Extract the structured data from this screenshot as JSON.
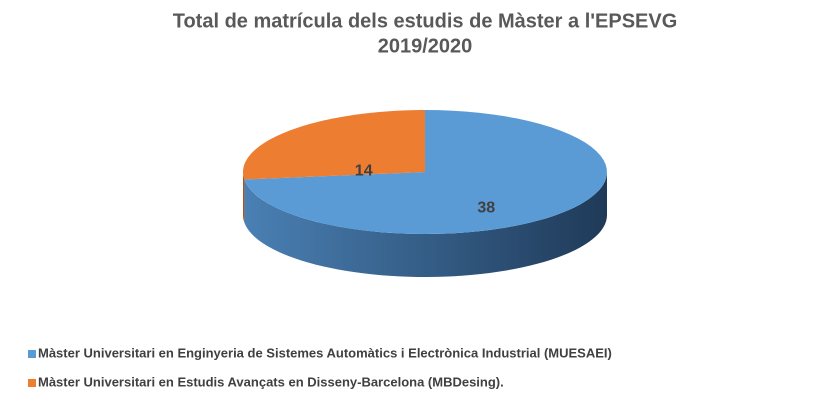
{
  "chart_data": {
    "type": "pie",
    "title": [
      "Total de matrícula dels estudis de Màster a l'EPSEVG",
      "2019/2020"
    ],
    "categories": [
      "Màster Universitari en Enginyeria de Sistemes Automàtics i Electrònica Industrial (MUESAEI)",
      "Màster Universitari en Estudis Avançats en Disseny-Barcelona (MBDesing)."
    ],
    "values": [
      38,
      14
    ],
    "colors": [
      "#5b9bd5",
      "#ed7d31"
    ],
    "legend": "bottom-left"
  }
}
